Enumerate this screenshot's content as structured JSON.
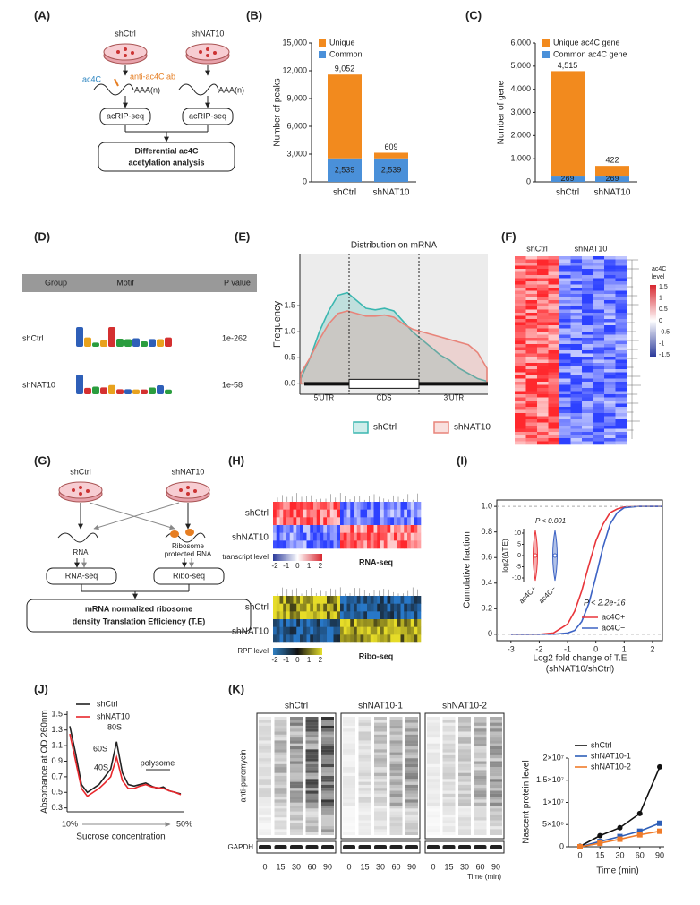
{
  "figure": {
    "labels": [
      "(A)",
      "(B)",
      "(C)",
      "(D)",
      "(E)",
      "(F)",
      "(G)",
      "(H)",
      "(I)",
      "(J)",
      "(K)"
    ],
    "A": {
      "groups": [
        "shCtrl",
        "shNAT10"
      ],
      "mod": "ac4C",
      "antibody": "anti-ac4C ab",
      "tail": "AAA(n)",
      "method": "acRIP-seq",
      "result": [
        "Differential ac4C",
        "acetylation analysis"
      ]
    },
    "D": {
      "header": [
        "Group",
        "Motif",
        "P value"
      ],
      "rows": [
        [
          "shCtrl",
          "1e-262"
        ],
        [
          "shNAT10",
          "1e-58"
        ]
      ]
    },
    "F": {
      "groups": [
        "shCtrl",
        "shNAT10"
      ],
      "scale_title": [
        "ac4C",
        "level"
      ],
      "scale": [
        1.5,
        1,
        0.5,
        0,
        -0.5,
        -1,
        -1.5
      ]
    },
    "G": {
      "groups": [
        "shCtrl",
        "shNAT10"
      ],
      "rna": "RNA",
      "protected": [
        "Ribosome",
        "protected RNA"
      ],
      "methods": [
        "RNA-seq",
        "Ribo-seq"
      ],
      "result": [
        "mRNA normalized ribosome",
        "density Translation Efficiency (T.E)"
      ]
    },
    "H": {
      "heatmaps": [
        {
          "groups": [
            "shCtrl",
            "shNAT10"
          ],
          "scale_title": "transcript level",
          "scale": [
            -2,
            -1,
            0,
            1,
            2
          ],
          "assay": "RNA-seq"
        },
        {
          "groups": [
            "shCtrl",
            "shNAT10"
          ],
          "scale_title": "RPF level",
          "scale": [
            -2,
            -1,
            0,
            1,
            2
          ],
          "assay": "Ribo-seq"
        }
      ]
    },
    "K": {
      "groups": [
        "shCtrl",
        "shNAT10-1",
        "shNAT10-2"
      ],
      "antibody": "anti-puromycin",
      "control": "GAPDH",
      "times": [
        0,
        15,
        30,
        60,
        90
      ],
      "time_label": "Time (min)"
    }
  },
  "chart_data": [
    {
      "type": "bar",
      "ylabel": "Number of peaks",
      "categories": [
        "shCtrl",
        "shNAT10"
      ],
      "series": [
        {
          "name": "Common",
          "color": "#4a90d9",
          "values": [
            2539,
            2539
          ],
          "value_labels": [
            "2,539",
            "2,539"
          ]
        },
        {
          "name": "Unique",
          "color": "#f28a1e",
          "values": [
            9052,
            609
          ],
          "value_labels": [
            "9,052",
            "609"
          ]
        }
      ],
      "ylim": [
        0,
        15000
      ],
      "yticks": [
        0,
        {
          "value": 3000,
          "label": "3,000"
        },
        {
          "value": 6000,
          "label": "6,000"
        },
        {
          "value": 9000,
          "label": "9,000"
        },
        {
          "value": 12000,
          "label": "12,000"
        },
        {
          "value": 15000,
          "label": "15,000"
        }
      ],
      "legend": "upper left"
    },
    {
      "type": "bar",
      "ylabel": "Number of gene",
      "categories": [
        "shCtrl",
        "shNAT10"
      ],
      "series": [
        {
          "name": "Common ac4C gene",
          "color": "#4a90d9",
          "values": [
            269,
            269
          ],
          "value_labels": [
            "269",
            "269"
          ]
        },
        {
          "name": "Unique ac4C gene",
          "color": "#f28a1e",
          "values": [
            4515,
            422
          ],
          "value_labels": [
            "4,515",
            "422"
          ]
        }
      ],
      "ylim": [
        0,
        6000
      ],
      "yticks": [
        0,
        {
          "value": 1000,
          "label": "1,000"
        },
        {
          "value": 2000,
          "label": "2,000"
        },
        {
          "value": 3000,
          "label": "3,000"
        },
        {
          "value": 4000,
          "label": "4,000"
        },
        {
          "value": 5000,
          "label": "5,000"
        },
        {
          "value": 6000,
          "label": "6,000"
        }
      ],
      "legend": "upper left"
    },
    {
      "type": "area",
      "title": "Distribution on mRNA",
      "ylabel": "Frequency",
      "regions": [
        "5'UTR",
        "CDS",
        "3'UTR"
      ],
      "categories": [
        null,
        null,
        null,
        null,
        null,
        null,
        null,
        null,
        null,
        null,
        null,
        null,
        null,
        null,
        null,
        null,
        null,
        null,
        null,
        null,
        null
      ],
      "series": [
        {
          "name": "shCtrl",
          "color": "#3bb7b0",
          "values": [
            0.1,
            0.5,
            1.0,
            1.4,
            1.7,
            1.75,
            1.6,
            1.45,
            1.42,
            1.45,
            1.4,
            1.2,
            1.0,
            0.85,
            0.7,
            0.55,
            0.45,
            0.3,
            0.2,
            0.1,
            0.05
          ]
        },
        {
          "name": "shNAT10",
          "color": "#e8847a",
          "values": [
            0.2,
            0.5,
            0.85,
            1.15,
            1.35,
            1.4,
            1.35,
            1.3,
            1.3,
            1.32,
            1.28,
            1.15,
            1.05,
            1.0,
            0.95,
            0.9,
            0.85,
            0.8,
            0.75,
            0.6,
            0.3
          ]
        }
      ],
      "ylim": [
        -0.2,
        2.5
      ],
      "yticks": [
        {
          "value": 0,
          "label": "0.0"
        },
        0.5,
        {
          "value": 1,
          "label": "1.0"
        },
        1.5
      ],
      "legend": "bottom"
    },
    {
      "type": "line",
      "ylabel": "Cumulative fraction",
      "xlabel": [
        "Log2 fold change of T.E",
        "(shNAT10/shCtrl)"
      ],
      "annotation": "P < 2.2e-16",
      "x": [
        -3,
        -2,
        -1.5,
        -1,
        -0.75,
        -0.5,
        -0.25,
        0,
        0.25,
        0.5,
        0.75,
        1,
        1.5,
        2,
        2.35
      ],
      "series": [
        {
          "name": "ac4C+",
          "color": "#e8353a",
          "values": [
            0,
            0,
            0.01,
            0.08,
            0.18,
            0.34,
            0.54,
            0.73,
            0.86,
            0.95,
            0.98,
            0.995,
            1,
            1,
            1
          ]
        },
        {
          "name": "ac4C−",
          "color": "#3d63c4",
          "values": [
            0,
            0,
            0,
            0.01,
            0.03,
            0.1,
            0.24,
            0.45,
            0.68,
            0.86,
            0.95,
            0.99,
            1,
            1,
            1
          ]
        }
      ],
      "xlim": [
        -3.5,
        2.35
      ],
      "xticks": [
        -3,
        -2,
        -1,
        0,
        1,
        2
      ],
      "ylim": [
        -0.05,
        1.05
      ],
      "yticks": [
        0,
        0.2,
        0.4,
        0.6,
        0.8,
        {
          "value": 1,
          "label": "1.0"
        }
      ],
      "legend": "lower right",
      "inset": {
        "title": "P < 0.001",
        "ylabel": "log2(ΔT.E)",
        "categories": [
          "ac4C+",
          "ac4C−"
        ],
        "ylim": [
          -12,
          12
        ],
        "yticks": [
          -10,
          -5,
          0,
          5,
          10
        ]
      }
    },
    {
      "type": "line",
      "ylabel": "Absorbance at OD 260nm",
      "xlabel": "Sucrose concentration",
      "x_end_labels": [
        "10%",
        "50%"
      ],
      "annotations": [
        "40S",
        "60S",
        "80S",
        "polysome"
      ],
      "categories": [
        null,
        null,
        null,
        null,
        null,
        null,
        null,
        null,
        null,
        null,
        null,
        null,
        null,
        null,
        null,
        null,
        null,
        null,
        null,
        null
      ],
      "series": [
        {
          "name": "shCtrl",
          "color": "#222222",
          "values": [
            1.35,
            1.0,
            0.6,
            0.5,
            0.55,
            0.6,
            0.7,
            0.8,
            1.15,
            0.75,
            0.6,
            0.58,
            0.6,
            0.62,
            0.58,
            0.55,
            0.57,
            0.52,
            0.5,
            0.48
          ]
        },
        {
          "name": "shNAT10",
          "color": "#e8262b",
          "values": [
            1.25,
            0.9,
            0.55,
            0.45,
            0.5,
            0.55,
            0.62,
            0.7,
            0.95,
            0.65,
            0.55,
            0.55,
            0.58,
            0.6,
            0.57,
            0.56,
            0.55,
            0.52,
            0.5,
            0.47
          ]
        }
      ],
      "ylim": [
        0.25,
        1.55
      ],
      "yticks": [
        0.3,
        0.5,
        0.7,
        0.9,
        1.1,
        1.3,
        1.5
      ],
      "legend": "upper right"
    },
    {
      "type": "line",
      "ylabel": "Nascent protein level",
      "xlabel": "Time (min)",
      "categories": [
        "0",
        "15",
        "30",
        "60",
        "90"
      ],
      "series": [
        {
          "name": "shCtrl",
          "color": "#111111",
          "values": [
            100000,
            2500000,
            4300000,
            7500000,
            18000000
          ]
        },
        {
          "name": "shNAT10-1",
          "color": "#2e5fb8",
          "values": [
            0,
            1200000,
            2300000,
            3500000,
            5300000
          ]
        },
        {
          "name": "shNAT10-2",
          "color": "#f07c2a",
          "values": [
            0,
            800000,
            1700000,
            2700000,
            3500000
          ]
        }
      ],
      "ylim": [
        0,
        20000000
      ],
      "yticks": [
        0,
        {
          "value": 5000000,
          "label": "5×10⁶"
        },
        {
          "value": 10000000,
          "label": "1×10⁷"
        },
        {
          "value": 15000000,
          "label": "1.5×10⁷"
        },
        {
          "value": 20000000,
          "label": "2×10⁷"
        }
      ],
      "legend": "upper left"
    }
  ]
}
